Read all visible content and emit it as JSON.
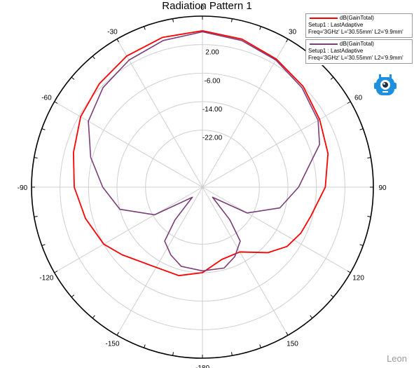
{
  "chart_data": {
    "type": "polar-line",
    "title": "Radiation Pattern 1",
    "angle_unit": "deg",
    "angle_ticks": [
      0,
      30,
      60,
      90,
      120,
      150,
      -180,
      -150,
      -120,
      -90,
      -60,
      -30
    ],
    "angle_tick_labels": [
      "0",
      "30",
      "60",
      "90",
      "120",
      "150",
      "-180",
      "-150",
      "-120",
      "-90",
      "-60",
      "-30"
    ],
    "r_min": -38,
    "r_max": 10,
    "r_ticks": [
      2.0,
      -6.0,
      -14.0,
      -22.0
    ],
    "r_tick_labels": [
      "2.00",
      "-6.00",
      "-14.00",
      "-22.00"
    ],
    "grid": true,
    "legend_position": "top-right",
    "series": [
      {
        "name": "dB(GainTotal)",
        "setup": "Setup1 : LastAdaptive",
        "params": "Freq='3GHz' L='30.55mm' L2='9.9mm'",
        "color": "#ff0000",
        "points": [
          {
            "angle": 0,
            "r": 5.9
          },
          {
            "angle": 15,
            "r": 5.0
          },
          {
            "angle": 30,
            "r": 3.5
          },
          {
            "angle": 45,
            "r": 2.0
          },
          {
            "angle": 60,
            "r": 0.0
          },
          {
            "angle": 75,
            "r": -1.5
          },
          {
            "angle": 90,
            "r": -3.5
          },
          {
            "angle": 105,
            "r": -6.5
          },
          {
            "angle": 115,
            "r": -7.5
          },
          {
            "angle": 125,
            "r": -9.0
          },
          {
            "angle": 135,
            "r": -12.0
          },
          {
            "angle": 150,
            "r": -17.0
          },
          {
            "angle": 165,
            "r": -17.0
          },
          {
            "angle": 180,
            "r": -14.0
          },
          {
            "angle": -165,
            "r": -12.3
          },
          {
            "angle": -150,
            "r": -12.0
          },
          {
            "angle": -130,
            "r": -8.5
          },
          {
            "angle": -120,
            "r": -6.0
          },
          {
            "angle": -105,
            "r": -4.0
          },
          {
            "angle": -90,
            "r": -2.0
          },
          {
            "angle": -75,
            "r": -0.5
          },
          {
            "angle": -60,
            "r": 1.5
          },
          {
            "angle": -45,
            "r": 3.0
          },
          {
            "angle": -30,
            "r": 4.5
          },
          {
            "angle": -15,
            "r": 5.5
          },
          {
            "angle": 0,
            "r": 5.9
          }
        ]
      },
      {
        "name": "dB(GainTotal)",
        "setup": "Setup1 : LastAdaptive",
        "params": "Freq='3GHz' L='30.55mm' L2='9.9mm'",
        "color": "#7a3e78",
        "points": [
          {
            "angle": 0,
            "r": 5.6
          },
          {
            "angle": 15,
            "r": 4.6
          },
          {
            "angle": 30,
            "r": 3.2
          },
          {
            "angle": 45,
            "r": 1.5
          },
          {
            "angle": 60,
            "r": -0.5
          },
          {
            "angle": 70,
            "r": -3.0
          },
          {
            "angle": 80,
            "r": -8.0
          },
          {
            "angle": 90,
            "r": -11.0
          },
          {
            "angle": 105,
            "r": -15.5
          },
          {
            "angle": 120,
            "r": -23.5
          },
          {
            "angle": 135,
            "r": -34.0
          },
          {
            "angle": 140,
            "r": -26.0
          },
          {
            "angle": 145,
            "r": -19.5
          },
          {
            "angle": 155,
            "r": -16.5
          },
          {
            "angle": 165,
            "r": -14.5
          },
          {
            "angle": 180,
            "r": -14.5
          },
          {
            "angle": -165,
            "r": -15.0
          },
          {
            "angle": -155,
            "r": -17.0
          },
          {
            "angle": -145,
            "r": -19.5
          },
          {
            "angle": -140,
            "r": -26.0
          },
          {
            "angle": -135,
            "r": -34.0
          },
          {
            "angle": -120,
            "r": -22.5
          },
          {
            "angle": -105,
            "r": -14.0
          },
          {
            "angle": -90,
            "r": -10.0
          },
          {
            "angle": -75,
            "r": -5.5
          },
          {
            "angle": -60,
            "r": -1.0
          },
          {
            "angle": -45,
            "r": 1.5
          },
          {
            "angle": -30,
            "r": 3.2
          },
          {
            "angle": -15,
            "r": 4.6
          },
          {
            "angle": 0,
            "r": 5.6
          }
        ]
      }
    ]
  },
  "watermark": "Leon"
}
